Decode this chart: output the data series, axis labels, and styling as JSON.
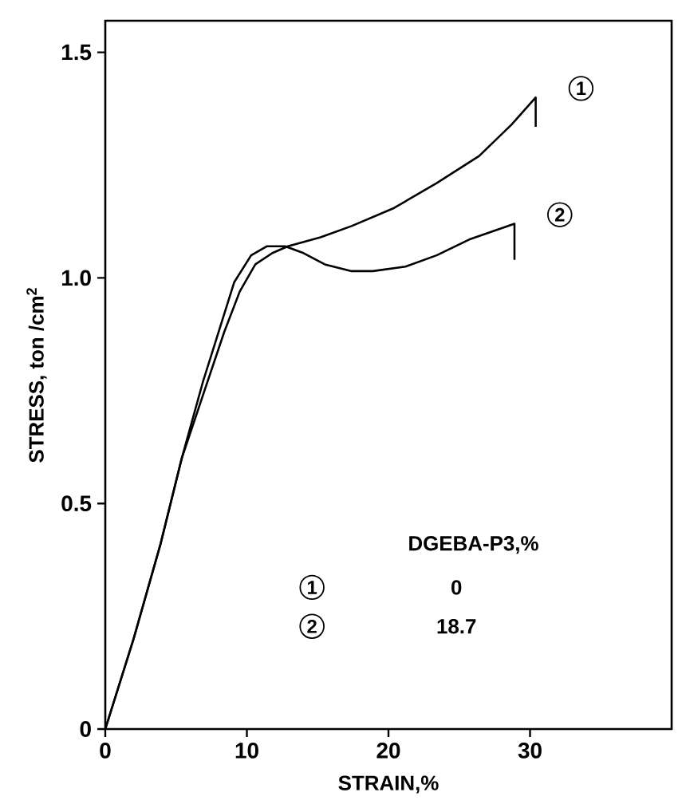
{
  "chart_data": {
    "type": "line",
    "xlabel": "STRAIN,%",
    "ylabel": "STRESS, ton /cm$^{2}$",
    "xlim": [
      0,
      40
    ],
    "ylim": [
      0,
      1.57
    ],
    "xticks": [
      0,
      10,
      20,
      30
    ],
    "yticks": [
      0,
      0.5,
      {
        "value": 1.0,
        "label": "1.0"
      },
      1.5
    ],
    "legend": "bottom",
    "legend_title": "DGEBA-P3,%",
    "annotations": [
      "0",
      "18.7"
    ],
    "series": [
      {
        "name": "1",
        "color": "#000000",
        "x": [
          0,
          2.0,
          3.9,
          5.4,
          6.9,
          8.4,
          9.5,
          10.6,
          11.8,
          12.9,
          15.2,
          17.4,
          20.4,
          23.4,
          26.4,
          28.7,
          30.4,
          30.4
        ],
        "values": [
          0,
          0.2,
          0.41,
          0.6,
          0.74,
          0.88,
          0.97,
          1.03,
          1.055,
          1.07,
          1.09,
          1.115,
          1.155,
          1.21,
          1.27,
          1.34,
          1.4,
          1.335
        ]
      },
      {
        "name": "2",
        "color": "#000000",
        "x": [
          0,
          2.0,
          3.9,
          5.4,
          6.9,
          8.0,
          9.1,
          10.3,
          11.4,
          12.7,
          14.0,
          15.5,
          17.4,
          18.9,
          21.2,
          23.4,
          25.7,
          28.9,
          28.9
        ],
        "values": [
          0,
          0.2,
          0.41,
          0.6,
          0.77,
          0.88,
          0.99,
          1.05,
          1.07,
          1.07,
          1.055,
          1.03,
          1.015,
          1.015,
          1.025,
          1.05,
          1.085,
          1.12,
          1.04
        ]
      }
    ]
  }
}
